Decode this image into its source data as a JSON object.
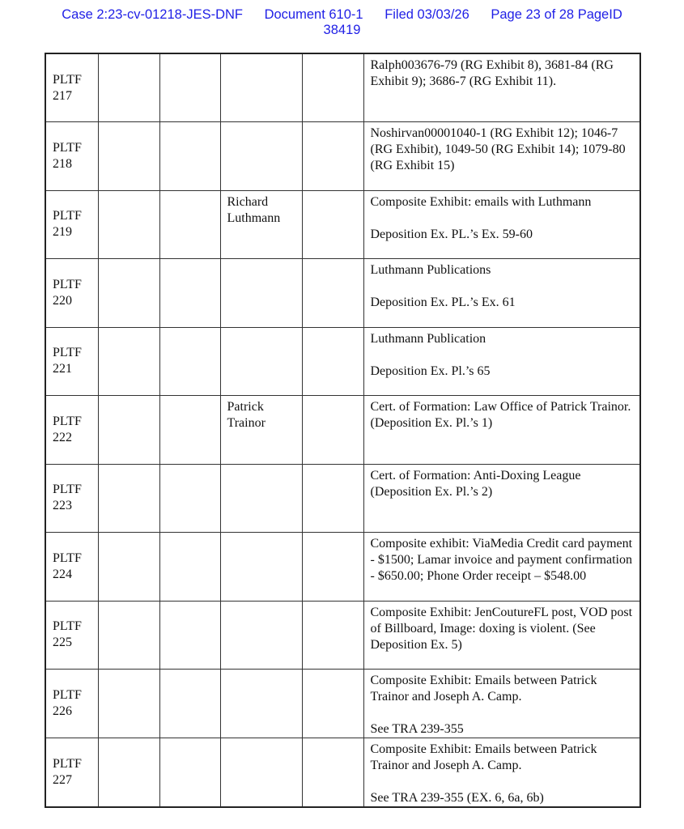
{
  "header": {
    "case": "Case 2:23-cv-01218-JES-DNF",
    "document": "Document 610-1",
    "filed": "Filed 03/03/26",
    "page": "Page 23 of 28 PageID",
    "pageid": "38419"
  },
  "rows": [
    {
      "id": [
        "PLTF",
        "217"
      ],
      "witness": [],
      "desc": [
        "Ralph003676-79 (RG Exhibit 8), 3681-84 (RG Exhibit 9); 3686-7 (RG Exhibit 11)."
      ]
    },
    {
      "id": [
        "PLTF",
        "218"
      ],
      "witness": [],
      "desc": [
        "Noshirvan00001040-1 (RG Exhibit 12); 1046-7 (RG Exhibit), 1049-50 (RG Exhibit 14); 1079-80 (RG Exhibit 15)"
      ]
    },
    {
      "id": [
        "PLTF",
        "219"
      ],
      "witness": [
        "Richard",
        "Luthmann"
      ],
      "desc": [
        "Composite Exhibit: emails with Luthmann",
        "",
        "Deposition Ex. PL.’s Ex. 59-60"
      ]
    },
    {
      "id": [
        "PLTF",
        "220"
      ],
      "witness": [],
      "desc": [
        "Luthmann Publications",
        "",
        "Deposition Ex. PL.’s Ex. 61"
      ]
    },
    {
      "id": [
        "PLTF",
        "221"
      ],
      "witness": [],
      "desc": [
        "Luthmann Publication",
        "",
        "Deposition Ex. Pl.’s 65"
      ]
    },
    {
      "id": [
        "PLTF",
        "222"
      ],
      "witness": [
        "Patrick",
        "Trainor"
      ],
      "desc": [
        "Cert. of Formation: Law Office of Patrick Trainor. (Deposition Ex. Pl.’s 1)"
      ]
    },
    {
      "id": [
        "PLTF",
        "223"
      ],
      "witness": [],
      "desc": [
        "Cert. of Formation: Anti-Doxing League (Deposition Ex. Pl.’s 2)"
      ]
    },
    {
      "id": [
        "PLTF",
        "224"
      ],
      "witness": [],
      "desc": [
        "Composite exhibit: ViaMedia Credit card payment - $1500; Lamar invoice and payment confirmation   - $650.00; Phone Order receipt – $548.00"
      ]
    },
    {
      "id": [
        "PLTF",
        "225"
      ],
      "witness": [],
      "desc": [
        "Composite Exhibit: JenCoutureFL post, VOD post of Billboard, Image: doxing is violent. (See Deposition Ex. 5)"
      ]
    },
    {
      "id": [
        "PLTF",
        "226"
      ],
      "witness": [],
      "desc": [
        "Composite Exhibit: Emails between Patrick Trainor and Joseph A. Camp.",
        "",
        "See TRA 239-355"
      ]
    },
    {
      "id": [
        "PLTF",
        "227"
      ],
      "witness": [],
      "desc": [
        "Composite Exhibit: Emails between Patrick Trainor and Joseph A. Camp.",
        "",
        "See TRA 239-355 (EX. 6, 6a, 6b)"
      ]
    }
  ]
}
